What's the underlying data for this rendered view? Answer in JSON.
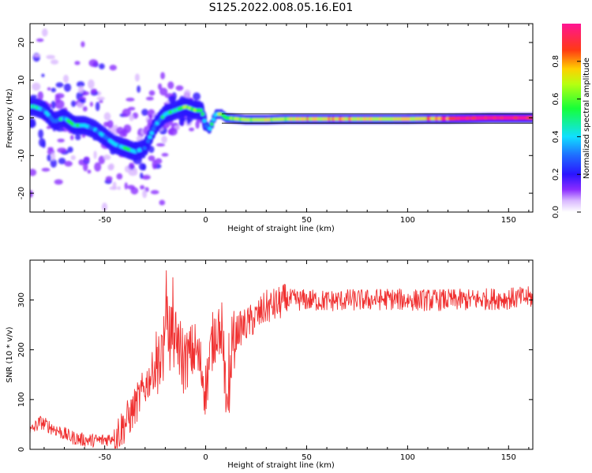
{
  "figure": {
    "title": "S125.2022.008.05.16.E01"
  },
  "colors": {
    "snr_line": "#f03030",
    "axis": "#000000",
    "background": "#ffffff"
  },
  "colorbar": {
    "label": "Normalized spectral amplitude",
    "ticks": [
      "0.0",
      "0.2",
      "0.4",
      "0.6",
      "0.8"
    ],
    "tick_values": [
      0.0,
      0.2,
      0.4,
      0.6,
      0.8
    ],
    "range": [
      0,
      1
    ],
    "colormap": "gist_rainbow (magenta→red→yellow→green→cyan→blue→purple→white)"
  },
  "chart_data": [
    {
      "type": "heatmap",
      "title": "",
      "xlabel": "Height of straight line (km)",
      "ylabel": "Frequency (Hz)",
      "xlim": [
        -87,
        162
      ],
      "ylim": [
        -25,
        25
      ],
      "x_ticks": [
        -50,
        0,
        50,
        100,
        150
      ],
      "y_ticks": [
        -20,
        -10,
        0,
        10,
        20
      ],
      "x_tick_labels": [
        "-50",
        "0",
        "50",
        "100",
        "150"
      ],
      "y_tick_labels": [
        "-20",
        "-10",
        "0",
        "10",
        "20"
      ],
      "grid": false,
      "description_series": [
        {
          "name": "",
          "x": [
            -85,
            -80,
            -75,
            -70,
            -65,
            -60,
            -55,
            -50,
            -45,
            -40,
            -35,
            -30,
            -25,
            -20,
            -15,
            -10,
            -5,
            -2,
            0,
            2,
            5,
            8,
            10,
            20,
            30,
            40,
            50,
            60,
            70,
            80,
            90,
            100,
            110,
            120,
            130,
            140,
            150,
            160
          ],
          "y": [
            3,
            2,
            -1,
            0,
            -2,
            -2,
            -3,
            -5,
            -7,
            -8,
            -9,
            -8,
            -2,
            1,
            2,
            3,
            2,
            2,
            -2,
            -3,
            1,
            1,
            0,
            -0.5,
            -0.5,
            -0.3,
            -0.3,
            -0.3,
            -0.3,
            -0.3,
            -0.3,
            -0.3,
            -0.2,
            -0.2,
            -0.1,
            0,
            0,
            0
          ],
          "amplitude": [
            0.4,
            0.3,
            0.3,
            0.35,
            0.4,
            0.3,
            0.25,
            0.3,
            0.3,
            0.45,
            0.35,
            0.25,
            0.3,
            0.4,
            0.45,
            0.5,
            0.55,
            0.45,
            0.3,
            0.35,
            0.45,
            0.5,
            0.55,
            0.6,
            0.6,
            0.6,
            0.7,
            0.7,
            0.7,
            0.65,
            0.65,
            0.7,
            0.75,
            0.8,
            0.85,
            0.9,
            0.9,
            0.85
          ]
        }
      ]
    },
    {
      "type": "line",
      "title": "",
      "xlabel": "Height of straight line (km)",
      "ylabel": "SNR (10 * v/v)",
      "xlim": [
        -87,
        162
      ],
      "ylim": [
        0,
        380
      ],
      "x_ticks": [
        -50,
        0,
        50,
        100,
        150
      ],
      "y_ticks": [
        0,
        100,
        200,
        300
      ],
      "x_tick_labels": [
        "-50",
        "0",
        "50",
        "100",
        "150"
      ],
      "y_tick_labels": [
        "0",
        "100",
        "200",
        "300"
      ],
      "grid": false,
      "series": [
        {
          "name": "",
          "x": [
            -87,
            -82,
            -77,
            -72,
            -67,
            -62,
            -57,
            -52,
            -47,
            -42,
            -37,
            -32,
            -27,
            -24,
            -21,
            -19,
            -17,
            -14,
            -11,
            -8,
            -5,
            -2,
            0,
            3,
            6,
            8,
            10,
            11,
            13,
            16,
            20,
            25,
            30,
            35,
            40,
            45,
            50,
            60,
            70,
            80,
            90,
            100,
            110,
            120,
            130,
            140,
            150,
            160,
            162
          ],
          "y": [
            35,
            55,
            45,
            35,
            25,
            20,
            18,
            18,
            22,
            40,
            70,
            110,
            150,
            180,
            200,
            240,
            220,
            230,
            170,
            190,
            200,
            160,
            120,
            210,
            250,
            240,
            120,
            60,
            210,
            240,
            250,
            265,
            285,
            290,
            300,
            300,
            300,
            298,
            300,
            300,
            302,
            300,
            300,
            300,
            300,
            302,
            303,
            305,
            305
          ]
        }
      ]
    }
  ]
}
